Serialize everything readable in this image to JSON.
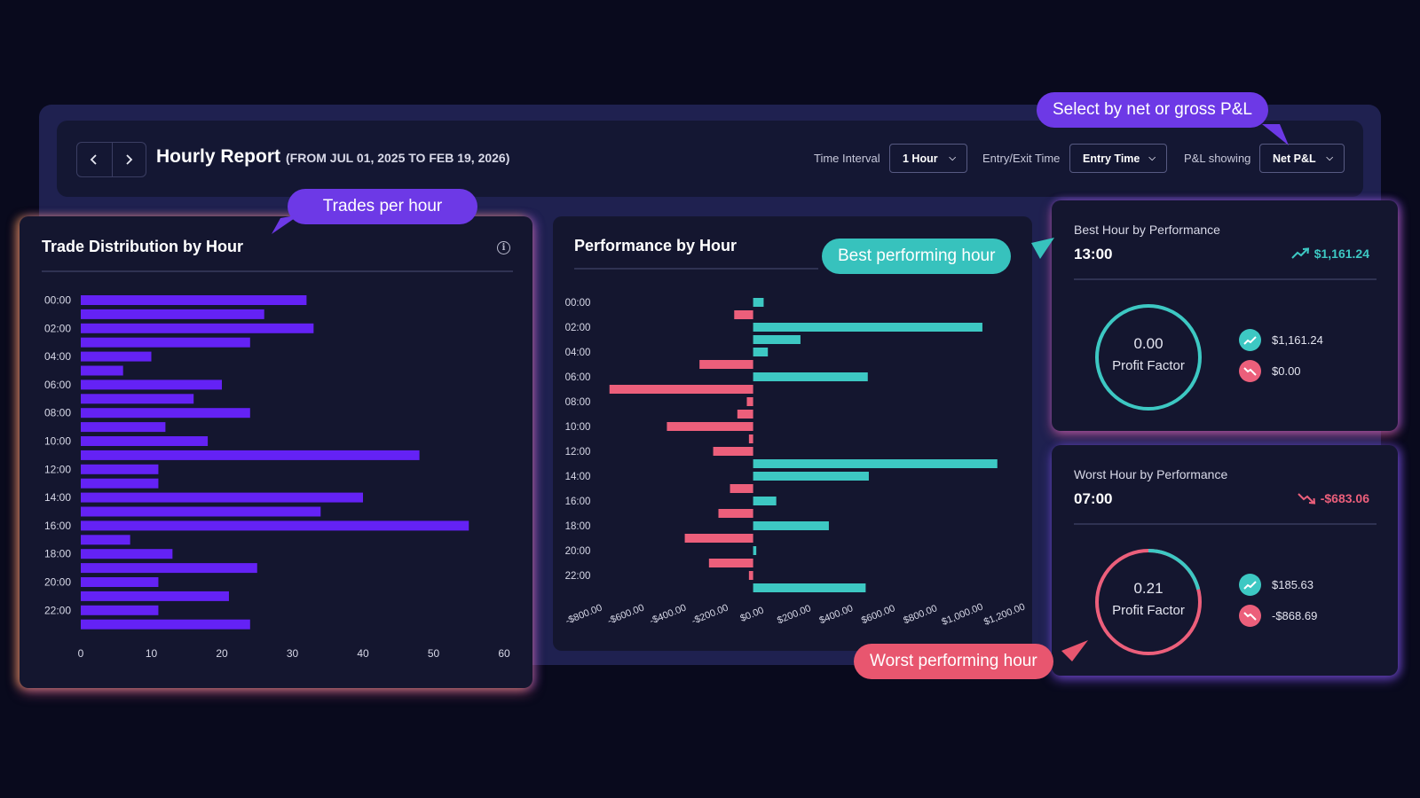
{
  "header": {
    "title": "Hourly Report",
    "range": "(FROM JUL 01, 2025 TO FEB 19, 2026)",
    "prev_icon": "chevron-left-icon",
    "next_icon": "chevron-right-icon",
    "time_interval_label": "Time Interval",
    "time_interval_value": "1 Hour",
    "entry_exit_label": "Entry/Exit Time",
    "entry_exit_value": "Entry Time",
    "pl_label": "P&L showing",
    "pl_value": "Net P&L"
  },
  "callouts": {
    "select_pl": "Select by net or gross P&L",
    "trades_per_hour": "Trades per hour",
    "best_hour": "Best performing hour",
    "worst_hour": "Worst performing hour"
  },
  "distribution": {
    "title": "Trade Distribution by Hour",
    "info_icon": "info-icon"
  },
  "performance": {
    "title": "Performance by Hour"
  },
  "best": {
    "label": "Best Hour by Performance",
    "hour": "13:00",
    "value": "$1,161.24",
    "profit_factor": "0.00",
    "profit_factor_label": "Profit Factor",
    "profit_factor_fraction": 1.0,
    "gain": "$1,161.24",
    "loss": "$0.00",
    "trend_icon": "trend-up-icon"
  },
  "worst": {
    "label": "Worst Hour by Performance",
    "hour": "07:00",
    "value": "-$683.06",
    "profit_factor": "0.21",
    "profit_factor_label": "Profit Factor",
    "profit_factor_fraction": 0.21,
    "gain": "$185.63",
    "loss": "-$868.69",
    "trend_icon": "trend-down-icon"
  },
  "colors": {
    "purple_bar": "#6422f5",
    "teal": "#3dc8c3",
    "pink": "#ec5f7b"
  },
  "chart_data": [
    {
      "type": "bar",
      "orientation": "horizontal",
      "title": "Trade Distribution by Hour",
      "categories": [
        "00:00",
        "01:00",
        "02:00",
        "03:00",
        "04:00",
        "05:00",
        "06:00",
        "07:00",
        "08:00",
        "09:00",
        "10:00",
        "11:00",
        "12:00",
        "13:00",
        "14:00",
        "15:00",
        "16:00",
        "17:00",
        "18:00",
        "19:00",
        "20:00",
        "21:00",
        "22:00",
        "23:00"
      ],
      "tick_labels": [
        "00:00",
        "02:00",
        "04:00",
        "06:00",
        "08:00",
        "10:00",
        "12:00",
        "14:00",
        "16:00",
        "18:00",
        "20:00",
        "22:00"
      ],
      "values": [
        32,
        26,
        33,
        24,
        10,
        6,
        20,
        16,
        24,
        12,
        18,
        48,
        11,
        11,
        40,
        34,
        55,
        7,
        13,
        25,
        11,
        21,
        11,
        24
      ],
      "xlim": [
        0,
        60
      ],
      "xticks": [
        "0",
        "10",
        "20",
        "30",
        "40",
        "50",
        "60"
      ],
      "grid": false
    },
    {
      "type": "bar",
      "orientation": "horizontal",
      "title": "Performance by Hour",
      "categories": [
        "00:00",
        "01:00",
        "02:00",
        "03:00",
        "04:00",
        "05:00",
        "06:00",
        "07:00",
        "08:00",
        "09:00",
        "10:00",
        "11:00",
        "12:00",
        "13:00",
        "14:00",
        "15:00",
        "16:00",
        "17:00",
        "18:00",
        "19:00",
        "20:00",
        "21:00",
        "22:00",
        "23:00"
      ],
      "tick_labels": [
        "00:00",
        "02:00",
        "04:00",
        "06:00",
        "08:00",
        "10:00",
        "12:00",
        "14:00",
        "16:00",
        "18:00",
        "20:00",
        "22:00"
      ],
      "values": [
        50,
        -90,
        1090,
        225,
        70,
        -255,
        545,
        -683,
        -30,
        -75,
        -410,
        -20,
        -190,
        1161,
        550,
        -110,
        110,
        -165,
        360,
        -325,
        15,
        -210,
        -20,
        535
      ],
      "xlim": [
        -800,
        1200
      ],
      "xticks": [
        "-$800.00",
        "-$600.00",
        "-$400.00",
        "-$200.00",
        "$0.00",
        "$200.00",
        "$400.00",
        "$600.00",
        "$800.00",
        "$1,000.00",
        "$1,200.00"
      ],
      "grid": false
    }
  ]
}
